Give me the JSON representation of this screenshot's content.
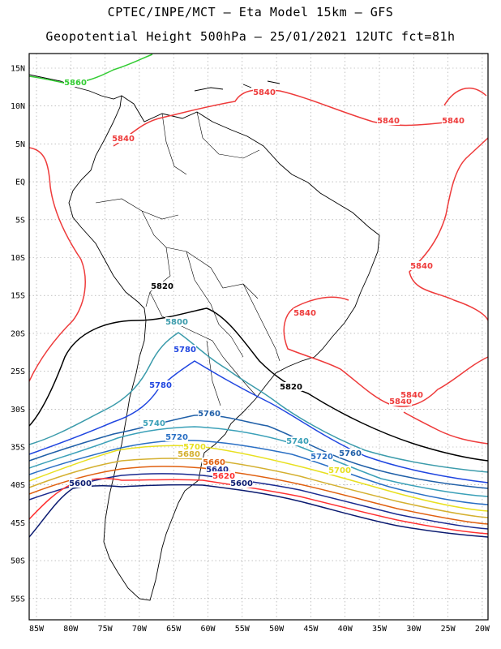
{
  "header": {
    "line1": "CPTEC/INPE/MCT –  Eta Model 15km – GFS",
    "line2": "Geopotential Height 500hPa – 25/01/2021 12UTC fct=81h"
  },
  "axes": {
    "lon_labels": [
      "85W",
      "80W",
      "75W",
      "70W",
      "65W",
      "60W",
      "55W",
      "50W",
      "45W",
      "40W",
      "35W",
      "30W",
      "25W",
      "20W"
    ],
    "lat_labels": [
      "15N",
      "10N",
      "5N",
      "EQ",
      "5S",
      "10S",
      "15S",
      "20S",
      "25S",
      "30S",
      "35S",
      "40S",
      "45S",
      "50S",
      "55S"
    ],
    "grid": true
  },
  "contours": [
    {
      "value": 5860,
      "label": "5860",
      "color": "#33cc33"
    },
    {
      "value": 5840,
      "label": "5840",
      "color": "#ee3b3b"
    },
    {
      "value": 5820,
      "label": "5820",
      "color": "#000000"
    },
    {
      "value": 5800,
      "label": "5800",
      "color": "#3b9bab"
    },
    {
      "value": 5780,
      "label": "5780",
      "color": "#2046e0"
    },
    {
      "value": 5760,
      "label": "5760",
      "color": "#1f5fa8"
    },
    {
      "value": 5740,
      "label": "5740",
      "color": "#3aa0b8"
    },
    {
      "value": 5720,
      "label": "5720",
      "color": "#2a6fc4"
    },
    {
      "value": 5700,
      "label": "5700",
      "color": "#e8e020"
    },
    {
      "value": 5680,
      "label": "5680",
      "color": "#d4b030"
    },
    {
      "value": 5660,
      "label": "5660",
      "color": "#e06010"
    },
    {
      "value": 5640,
      "label": "5640",
      "color": "#1a2a90"
    },
    {
      "value": 5620,
      "label": "5620",
      "color": "#ff3030"
    },
    {
      "value": 5600,
      "label": "5600",
      "color": "#0a1a70"
    }
  ]
}
